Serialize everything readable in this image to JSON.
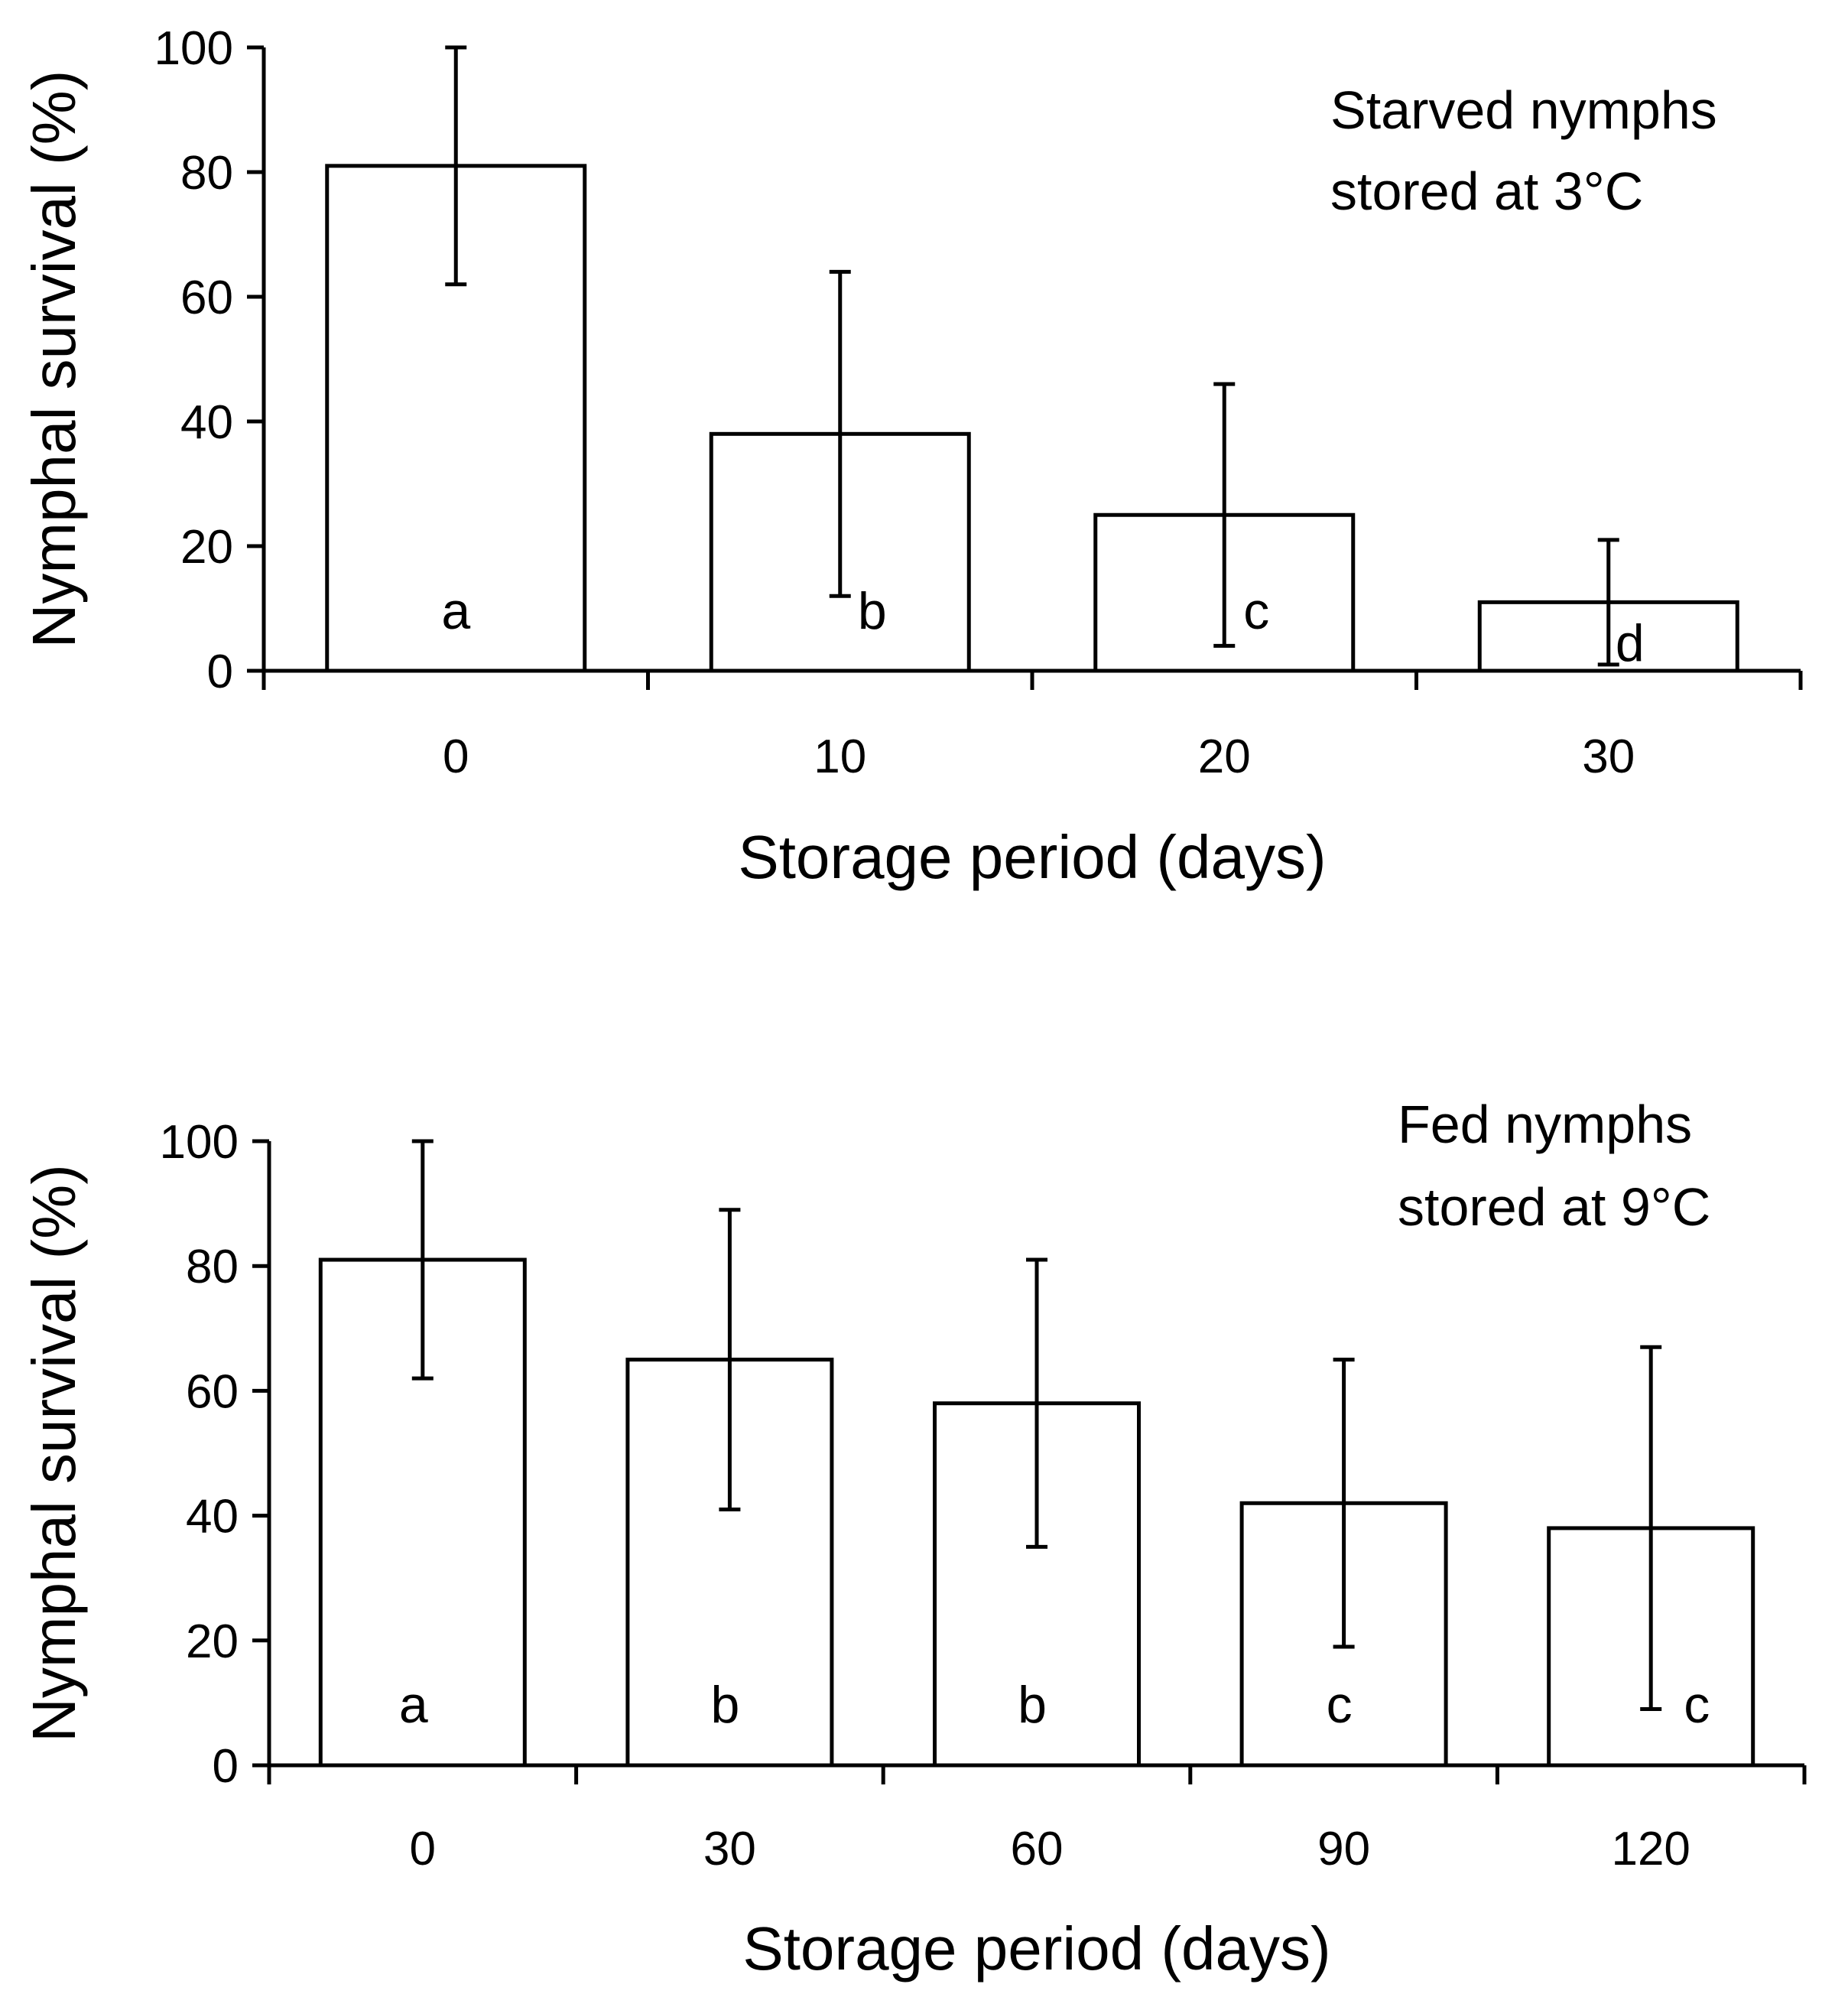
{
  "chart_data": [
    {
      "type": "bar",
      "panel": "top",
      "annotation": [
        "Starved nymphs",
        "stored at 3°C"
      ],
      "xlabel": "Storage period (days)",
      "ylabel": "Nymphal survival (%)",
      "ylim": [
        0,
        100
      ],
      "yticks": [
        "0",
        "20",
        "40",
        "60",
        "80",
        "100"
      ],
      "categories": [
        "0",
        "10",
        "20",
        "30"
      ],
      "values": [
        81,
        38,
        25,
        11
      ],
      "error_low": [
        62,
        12,
        4,
        1
      ],
      "error_high": [
        100,
        64,
        46,
        21
      ],
      "letters": [
        "a",
        "b",
        "c",
        "d"
      ],
      "grid": false
    },
    {
      "type": "bar",
      "panel": "bottom",
      "annotation": [
        "Fed nymphs",
        "stored at 9°C"
      ],
      "xlabel": "Storage period (days)",
      "ylabel": "Nymphal survival (%)",
      "ylim": [
        0,
        100
      ],
      "yticks": [
        "0",
        "20",
        "40",
        "60",
        "80",
        "100"
      ],
      "categories": [
        "0",
        "30",
        "60",
        "90",
        "120"
      ],
      "values": [
        81,
        65,
        58,
        42,
        38
      ],
      "error_low": [
        62,
        41,
        35,
        19,
        9
      ],
      "error_high": [
        100,
        89,
        81,
        65,
        67
      ],
      "letters": [
        "a",
        "b",
        "b",
        "c",
        "c"
      ],
      "grid": false
    }
  ]
}
